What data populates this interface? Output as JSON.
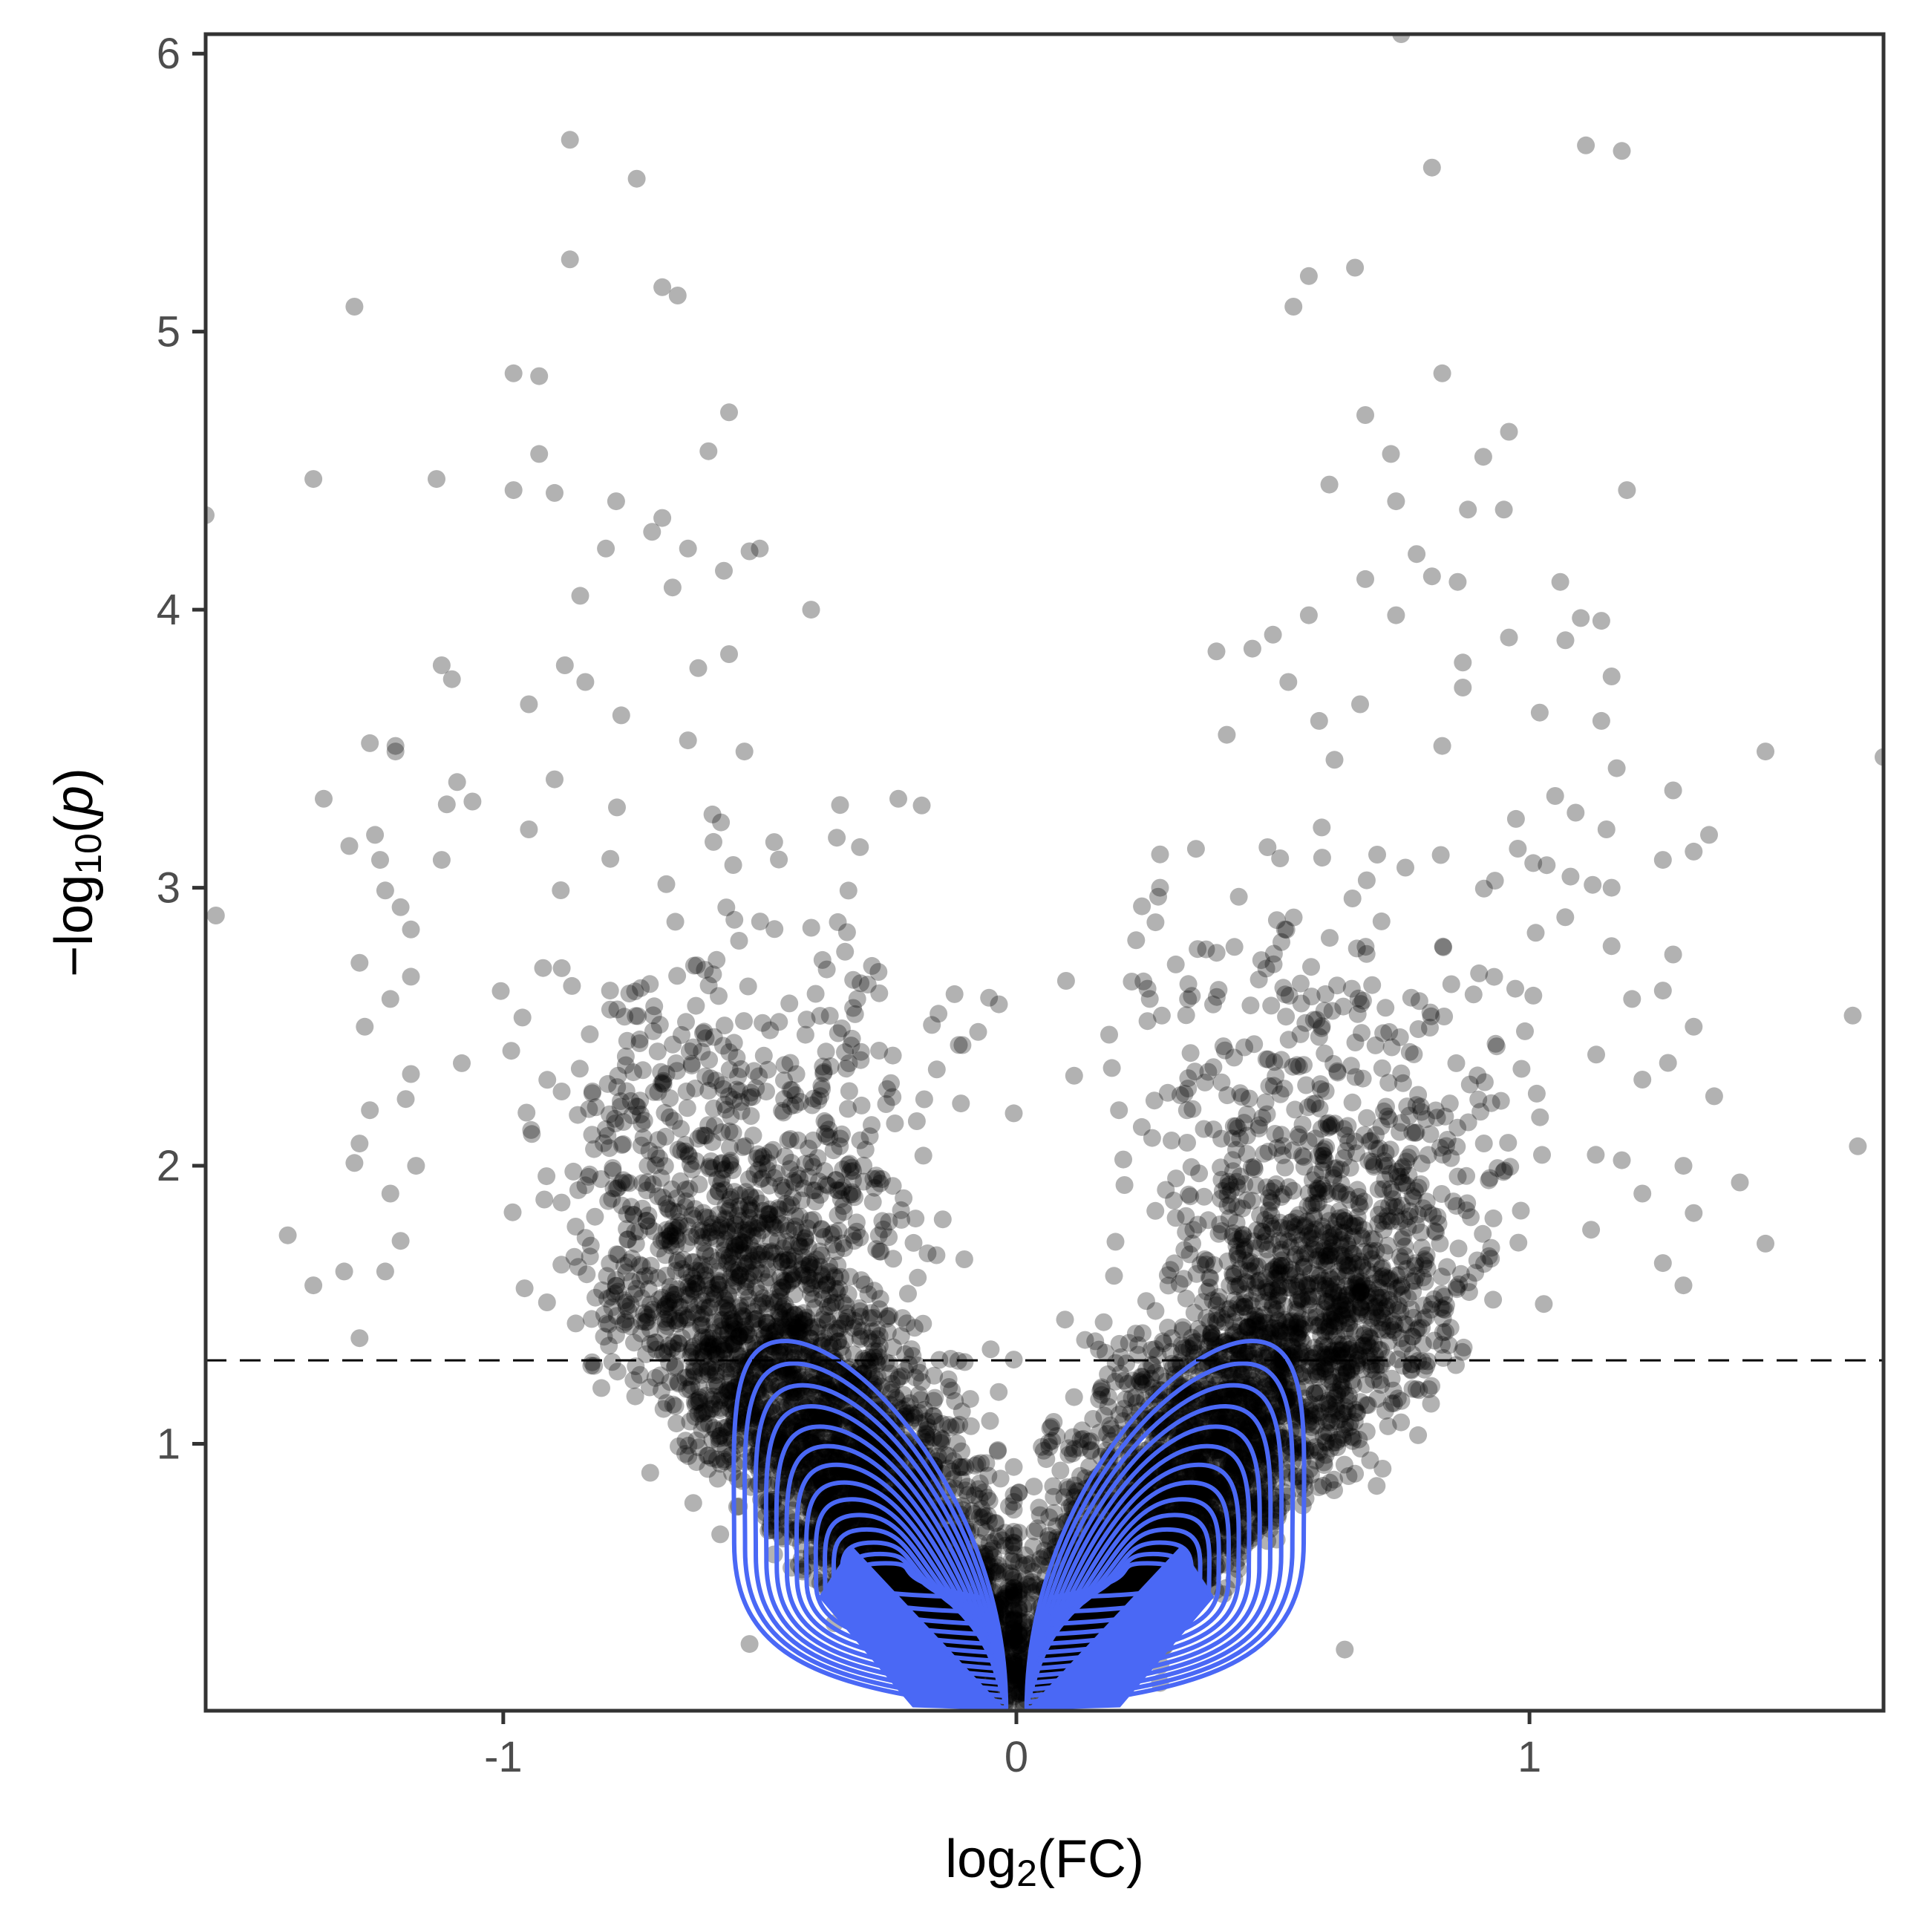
{
  "chart_data": {
    "type": "scatter",
    "title": "",
    "xlabel": {
      "base": "log",
      "sub": "2",
      "rest": "(FC)"
    },
    "ylabel": {
      "minus": "−",
      "base": "log",
      "sub": "10",
      "open": "(",
      "var": "p",
      "close": ")"
    },
    "xlim": [
      -1.58,
      1.69
    ],
    "ylim": [
      0.04,
      6.07
    ],
    "x_ticks": [
      {
        "value": -1,
        "label": "-1"
      },
      {
        "value": 0,
        "label": "0"
      },
      {
        "value": 1,
        "label": "1"
      }
    ],
    "y_ticks": [
      {
        "value": 1,
        "label": "1"
      },
      {
        "value": 2,
        "label": "2"
      },
      {
        "value": 3,
        "label": "3"
      },
      {
        "value": 4,
        "label": "4"
      },
      {
        "value": 5,
        "label": "5"
      },
      {
        "value": 6,
        "label": "6"
      }
    ],
    "threshold_y": 1.3,
    "grid": false,
    "legend": "none",
    "point_color": "#000000",
    "point_opacity": 0.3,
    "contour_color": "#4a68f5",
    "notable_points": [
      {
        "x": 0.75,
        "y": 6.07
      },
      {
        "x": -0.87,
        "y": 5.69
      },
      {
        "x": 1.11,
        "y": 5.67
      },
      {
        "x": 1.18,
        "y": 5.65
      },
      {
        "x": 0.81,
        "y": 5.59
      },
      {
        "x": -0.74,
        "y": 5.55
      },
      {
        "x": -0.87,
        "y": 5.26
      },
      {
        "x": 0.66,
        "y": 5.23
      },
      {
        "x": 0.57,
        "y": 5.2
      },
      {
        "x": -0.69,
        "y": 5.16
      },
      {
        "x": -0.66,
        "y": 5.13
      },
      {
        "x": -1.29,
        "y": 5.09
      },
      {
        "x": 0.54,
        "y": 5.09
      },
      {
        "x": -0.98,
        "y": 4.85
      },
      {
        "x": -0.93,
        "y": 4.84
      },
      {
        "x": 0.83,
        "y": 4.85
      },
      {
        "x": -0.56,
        "y": 4.71
      },
      {
        "x": 0.68,
        "y": 4.7
      },
      {
        "x": 0.96,
        "y": 4.64
      },
      {
        "x": -0.6,
        "y": 4.57
      },
      {
        "x": -0.93,
        "y": 4.56
      },
      {
        "x": 0.73,
        "y": 4.56
      },
      {
        "x": 0.91,
        "y": 4.55
      },
      {
        "x": -1.37,
        "y": 4.47
      },
      {
        "x": -1.13,
        "y": 4.47
      },
      {
        "x": 0.61,
        "y": 4.45
      },
      {
        "x": -0.98,
        "y": 4.43
      },
      {
        "x": 1.19,
        "y": 4.43
      },
      {
        "x": -0.9,
        "y": 4.42
      },
      {
        "x": -0.78,
        "y": 4.39
      },
      {
        "x": 0.74,
        "y": 4.39
      },
      {
        "x": -1.58,
        "y": 4.34
      },
      {
        "x": 0.88,
        "y": 4.36
      },
      {
        "x": 0.95,
        "y": 4.36
      },
      {
        "x": -0.69,
        "y": 4.33
      },
      {
        "x": -0.71,
        "y": 4.28
      },
      {
        "x": -0.8,
        "y": 4.22
      },
      {
        "x": -0.64,
        "y": 4.22
      },
      {
        "x": -0.52,
        "y": 4.21
      },
      {
        "x": -0.5,
        "y": 4.22
      },
      {
        "x": 0.78,
        "y": 4.2
      },
      {
        "x": -0.57,
        "y": 4.14
      },
      {
        "x": 0.68,
        "y": 4.11
      },
      {
        "x": 0.81,
        "y": 4.12
      },
      {
        "x": 0.86,
        "y": 4.1
      },
      {
        "x": 1.06,
        "y": 4.1
      },
      {
        "x": -0.67,
        "y": 4.08
      },
      {
        "x": -0.85,
        "y": 4.05
      },
      {
        "x": -0.4,
        "y": 4.0
      },
      {
        "x": 0.57,
        "y": 3.98
      },
      {
        "x": 0.74,
        "y": 3.98
      },
      {
        "x": 1.1,
        "y": 3.97
      },
      {
        "x": 1.14,
        "y": 3.96
      },
      {
        "x": 0.96,
        "y": 3.9
      },
      {
        "x": 0.39,
        "y": 3.85
      },
      {
        "x": 0.46,
        "y": 3.86
      },
      {
        "x": 0.5,
        "y": 3.91
      },
      {
        "x": -0.62,
        "y": 3.79
      },
      {
        "x": -1.12,
        "y": 3.8
      },
      {
        "x": -0.88,
        "y": 3.8
      },
      {
        "x": -0.56,
        "y": 3.84
      },
      {
        "x": 0.87,
        "y": 3.81
      },
      {
        "x": 1.07,
        "y": 3.89
      },
      {
        "x": -0.84,
        "y": 3.74
      },
      {
        "x": 0.53,
        "y": 3.74
      },
      {
        "x": 0.87,
        "y": 3.72
      },
      {
        "x": 1.16,
        "y": 3.76
      },
      {
        "x": -1.1,
        "y": 3.75
      },
      {
        "x": -0.95,
        "y": 3.66
      },
      {
        "x": -0.77,
        "y": 3.62
      },
      {
        "x": 0.67,
        "y": 3.66
      },
      {
        "x": 0.59,
        "y": 3.6
      },
      {
        "x": 1.14,
        "y": 3.6
      },
      {
        "x": -1.26,
        "y": 3.52
      },
      {
        "x": 0.41,
        "y": 3.55
      },
      {
        "x": -0.64,
        "y": 3.53
      },
      {
        "x": 1.02,
        "y": 3.63
      },
      {
        "x": -1.21,
        "y": 3.51
      },
      {
        "x": -1.21,
        "y": 3.49
      },
      {
        "x": -0.53,
        "y": 3.49
      },
      {
        "x": 0.83,
        "y": 3.51
      },
      {
        "x": 1.46,
        "y": 3.49
      },
      {
        "x": 1.69,
        "y": 3.47
      },
      {
        "x": 0.62,
        "y": 3.46
      },
      {
        "x": 1.17,
        "y": 3.43
      },
      {
        "x": -0.9,
        "y": 3.39
      },
      {
        "x": -1.09,
        "y": 3.38
      },
      {
        "x": 1.28,
        "y": 3.35
      },
      {
        "x": -1.35,
        "y": 3.32
      },
      {
        "x": -0.23,
        "y": 3.32
      },
      {
        "x": 1.05,
        "y": 3.33
      },
      {
        "x": -1.11,
        "y": 3.3
      },
      {
        "x": -1.06,
        "y": 3.31
      },
      {
        "x": -1.25,
        "y": 3.19
      },
      {
        "x": -0.95,
        "y": 3.21
      },
      {
        "x": -0.35,
        "y": 3.18
      },
      {
        "x": 1.09,
        "y": 3.27
      },
      {
        "x": 1.15,
        "y": 3.21
      },
      {
        "x": 1.35,
        "y": 3.19
      },
      {
        "x": -1.3,
        "y": 3.15
      },
      {
        "x": 0.28,
        "y": 3.12
      },
      {
        "x": 0.35,
        "y": 3.14
      },
      {
        "x": 1.32,
        "y": 3.13
      },
      {
        "x": 1.26,
        "y": 3.1
      },
      {
        "x": -1.12,
        "y": 3.1
      },
      {
        "x": -1.24,
        "y": 3.1
      },
      {
        "x": 0.28,
        "y": 3.0
      },
      {
        "x": 1.08,
        "y": 3.04
      },
      {
        "x": 1.16,
        "y": 3.0
      },
      {
        "x": -1.23,
        "y": 2.99
      },
      {
        "x": -1.2,
        "y": 2.93
      },
      {
        "x": -1.56,
        "y": 2.9
      },
      {
        "x": -1.18,
        "y": 2.85
      },
      {
        "x": -0.33,
        "y": 2.84
      },
      {
        "x": -1.28,
        "y": 2.73
      },
      {
        "x": 1.16,
        "y": 2.79
      },
      {
        "x": 1.28,
        "y": 2.76
      },
      {
        "x": -1.18,
        "y": 2.68
      },
      {
        "x": -1.22,
        "y": 2.6
      },
      {
        "x": -0.31,
        "y": 2.6
      },
      {
        "x": 1.26,
        "y": 2.63
      },
      {
        "x": 0.26,
        "y": 2.6
      },
      {
        "x": 1.2,
        "y": 2.6
      },
      {
        "x": 1.63,
        "y": 2.54
      },
      {
        "x": -1.27,
        "y": 2.5
      },
      {
        "x": 1.32,
        "y": 2.5
      },
      {
        "x": 1.13,
        "y": 2.4
      },
      {
        "x": -1.18,
        "y": 2.33
      },
      {
        "x": 1.27,
        "y": 2.37
      },
      {
        "x": 0.4,
        "y": 2.3
      },
      {
        "x": 1.22,
        "y": 2.31
      },
      {
        "x": -1.19,
        "y": 2.24
      },
      {
        "x": 1.36,
        "y": 2.25
      },
      {
        "x": -1.26,
        "y": 2.2
      },
      {
        "x": 0.2,
        "y": 2.2
      },
      {
        "x": -1.28,
        "y": 2.08
      },
      {
        "x": -1.29,
        "y": 2.01
      },
      {
        "x": 1.64,
        "y": 2.07
      },
      {
        "x": 1.18,
        "y": 2.02
      },
      {
        "x": -1.17,
        "y": 2.0
      },
      {
        "x": 1.3,
        "y": 2.0
      },
      {
        "x": -1.22,
        "y": 1.9
      },
      {
        "x": 1.41,
        "y": 1.94
      },
      {
        "x": 1.22,
        "y": 1.9
      },
      {
        "x": 1.32,
        "y": 1.83
      },
      {
        "x": -1.42,
        "y": 1.75
      },
      {
        "x": -1.2,
        "y": 1.73
      },
      {
        "x": 1.12,
        "y": 1.77
      },
      {
        "x": 1.46,
        "y": 1.72
      },
      {
        "x": -1.31,
        "y": 1.62
      },
      {
        "x": -1.23,
        "y": 1.62
      },
      {
        "x": 1.26,
        "y": 1.65
      },
      {
        "x": -1.37,
        "y": 1.57
      },
      {
        "x": 1.3,
        "y": 1.57
      },
      {
        "x": -1.28,
        "y": 1.38
      },
      {
        "x": -0.05,
        "y": 1.34
      },
      {
        "x": -0.52,
        "y": 0.28
      },
      {
        "x": 0.64,
        "y": 0.26
      },
      {
        "x": 0.28,
        "y": 0.14
      }
    ],
    "point_density": {
      "left": {
        "center": [
          -0.55,
          1.75
        ],
        "spread": [
          0.22,
          0.55
        ],
        "count": 4200
      },
      "right": {
        "center": [
          0.6,
          1.75
        ],
        "spread": [
          0.22,
          0.55
        ],
        "count": 4200
      }
    },
    "contours": {
      "left": {
        "peak": [
          -0.3,
          0.55
        ],
        "levels": 14,
        "outer_bounds": {
          "x": [
            -0.55,
            0.02
          ],
          "y": [
            0.06,
            1.37
          ]
        }
      },
      "right": {
        "peak": [
          0.3,
          0.55
        ],
        "levels": 14,
        "outer_bounds": {
          "x": [
            0.02,
            0.56
          ],
          "y": [
            0.06,
            1.37
          ]
        }
      }
    }
  }
}
